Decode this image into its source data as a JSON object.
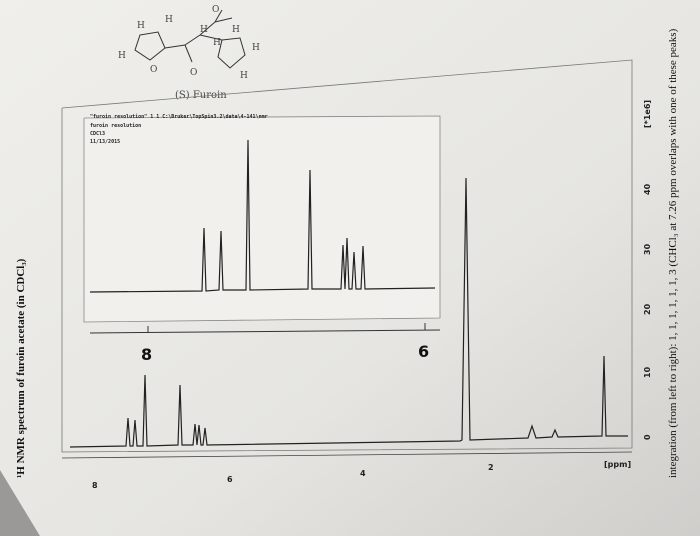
{
  "structure": {
    "atom_labels": [
      "H",
      "H",
      "H",
      "O",
      "O",
      "H",
      "H",
      "H",
      "H",
      "O",
      "H"
    ],
    "caption": "(S) Furoin"
  },
  "inset": {
    "header": [
      "\"furoin resolution\"  1  1  C:\\Bruker\\TopSpin3.2\\data\\4-141\\nmr",
      "furoin resolution",
      "CDCl3",
      "11/13/2015"
    ],
    "axis_labels": [
      "8",
      "6"
    ]
  },
  "main_axis": {
    "x_labels": [
      "8",
      "6",
      "4",
      "2"
    ],
    "x_unit": "[ppm]",
    "y_unit": "[*1e6]",
    "y_labels": [
      "40",
      "30",
      "20",
      "10",
      "0"
    ]
  },
  "left_caption": "¹H NMR spectrum of furoin acetate (in CDCl₃)",
  "right_caption": "integration (from left to right): 1, 1, 1, 1, 1, 1, 3 (CHCl₃ at 7.26 ppm overlaps with one of these peaks)"
}
